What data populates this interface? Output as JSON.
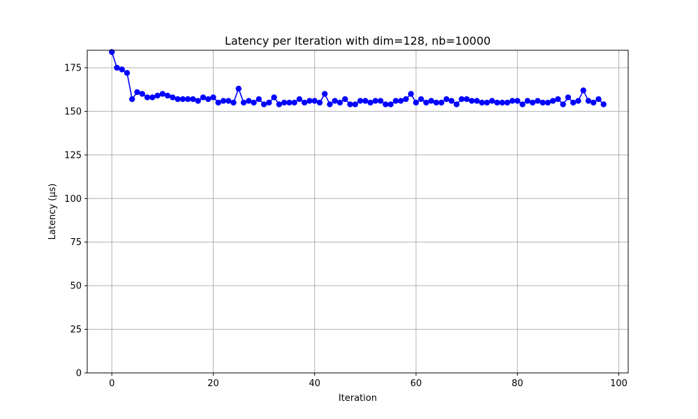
{
  "chart_data": {
    "type": "line",
    "title": "Latency per Iteration with dim=128, nb=10000",
    "xlabel": "Iteration",
    "ylabel": "Latency (μs)",
    "xlim": [
      -4.85,
      101.85
    ],
    "ylim": [
      0,
      185
    ],
    "xticks": [
      0,
      20,
      40,
      60,
      80,
      100
    ],
    "yticks": [
      0,
      25,
      50,
      75,
      100,
      125,
      150,
      175
    ],
    "grid": true,
    "marker": "circle",
    "series": [
      {
        "color": "#0000ff",
        "x": [
          0,
          1,
          2,
          3,
          4,
          5,
          6,
          7,
          8,
          9,
          10,
          11,
          12,
          13,
          14,
          15,
          16,
          17,
          18,
          19,
          20,
          21,
          22,
          23,
          24,
          25,
          26,
          27,
          28,
          29,
          30,
          31,
          32,
          33,
          34,
          35,
          36,
          37,
          38,
          39,
          40,
          41,
          42,
          43,
          44,
          45,
          46,
          47,
          48,
          49,
          50,
          51,
          52,
          53,
          54,
          55,
          56,
          57,
          58,
          59,
          60,
          61,
          62,
          63,
          64,
          65,
          66,
          67,
          68,
          69,
          70,
          71,
          72,
          73,
          74,
          75,
          76,
          77,
          78,
          79,
          80,
          81,
          82,
          83,
          84,
          85,
          86,
          87,
          88,
          89,
          90,
          91,
          92,
          93,
          94,
          95,
          96,
          97
        ],
        "values": [
          184,
          175,
          174,
          172,
          157,
          161,
          160,
          158,
          158,
          159,
          160,
          159,
          158,
          157,
          157,
          157,
          157,
          156,
          158,
          157,
          158,
          155,
          156,
          156,
          155,
          163,
          155,
          156,
          155,
          157,
          154,
          155,
          158,
          154,
          155,
          155,
          155,
          157,
          155,
          156,
          156,
          155,
          160,
          154,
          156,
          155,
          157,
          154,
          154,
          156,
          156,
          155,
          156,
          156,
          154,
          154,
          156,
          156,
          157,
          160,
          155,
          157,
          155,
          156,
          155,
          155,
          157,
          156,
          154,
          157,
          157,
          156,
          156,
          155,
          155,
          156,
          155,
          155,
          155,
          156,
          156,
          154,
          156,
          155,
          156,
          155,
          155,
          156,
          157,
          154,
          158,
          155,
          156,
          162,
          156,
          155,
          157,
          154
        ]
      }
    ]
  }
}
